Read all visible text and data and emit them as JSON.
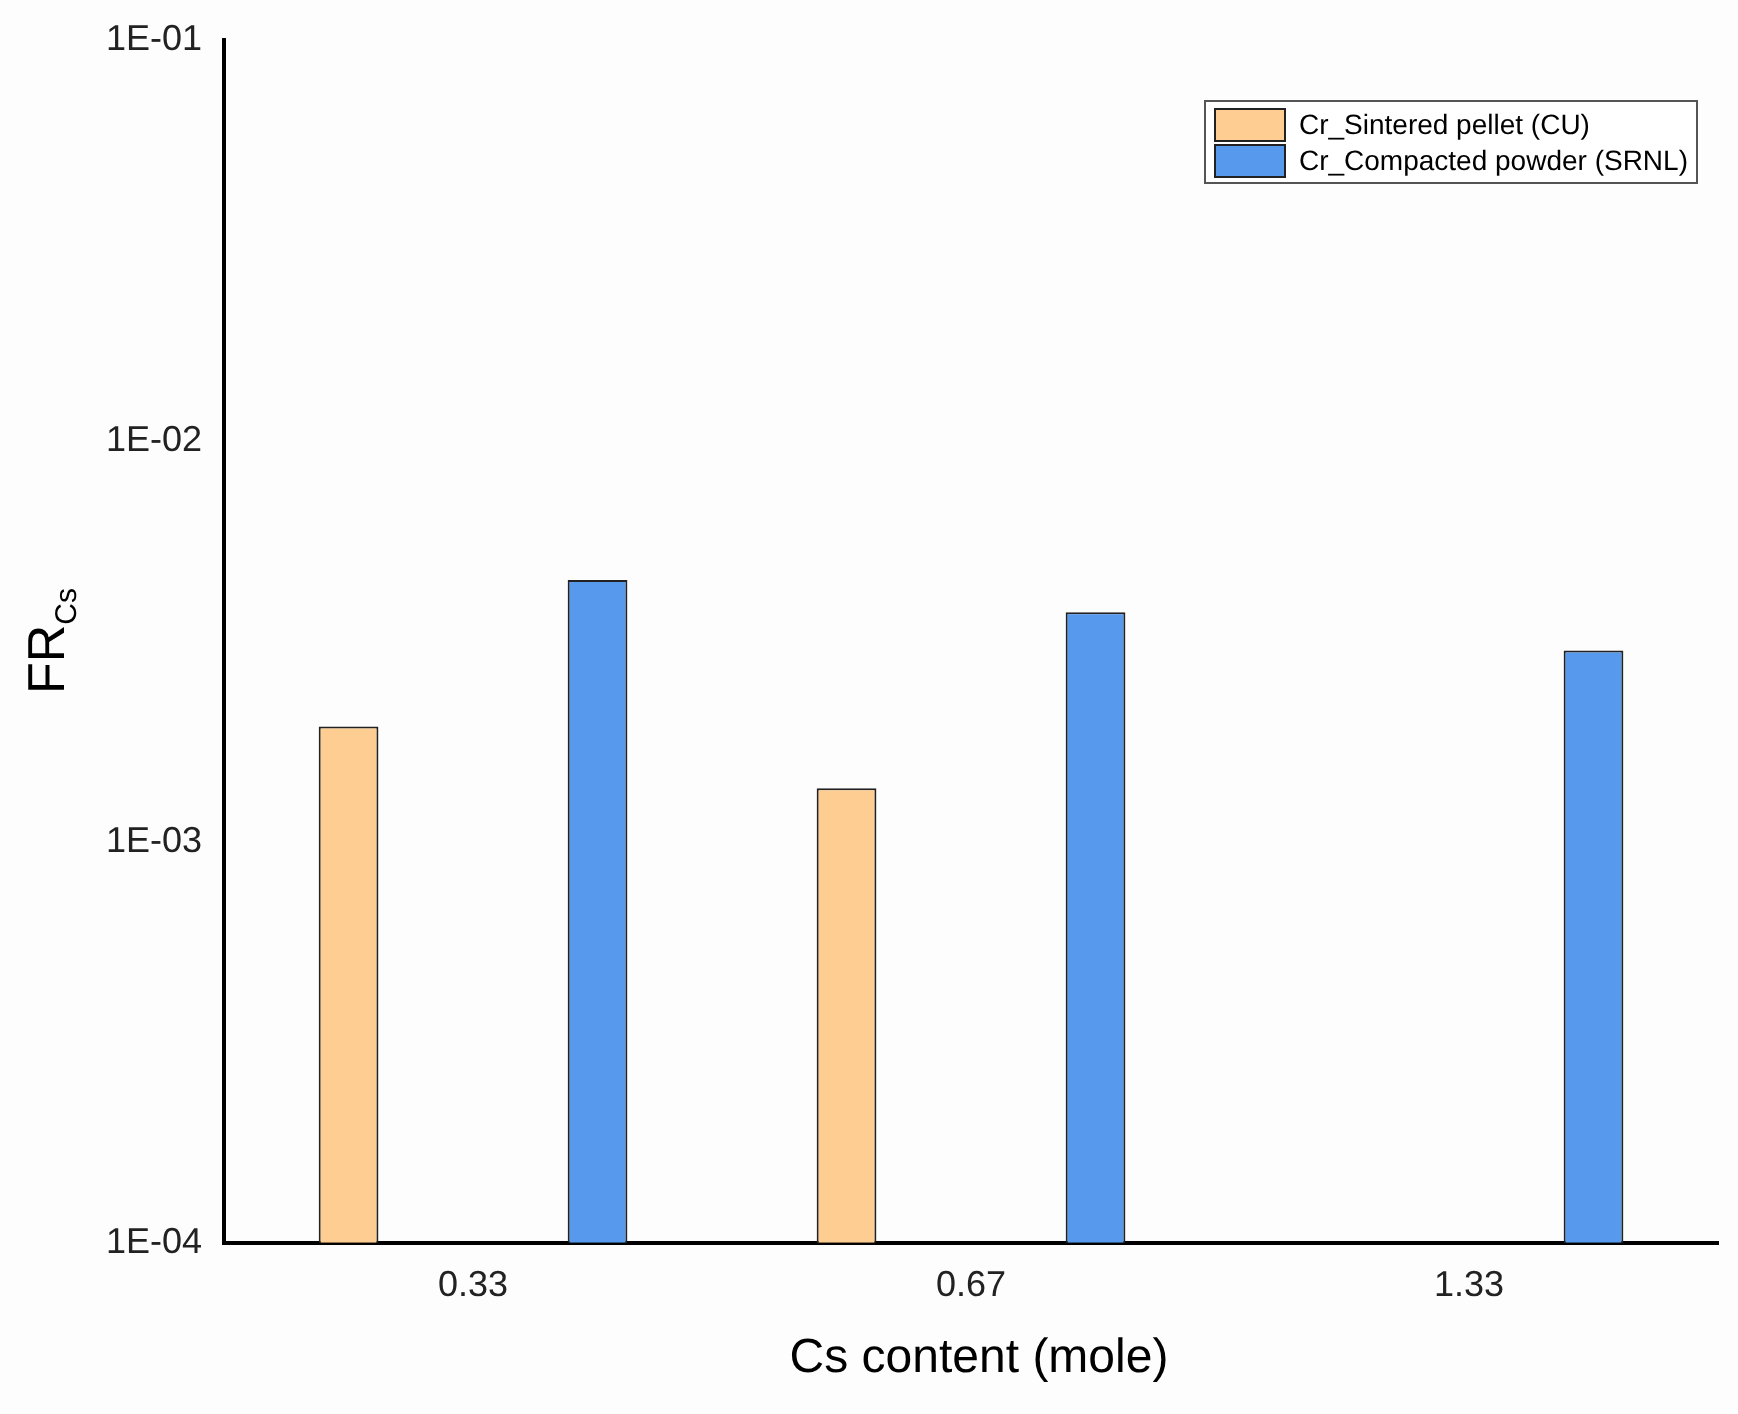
{
  "chart_data": {
    "type": "bar",
    "xlabel": "Cs content (mole)",
    "ylabel": "FR$_{Cs}$",
    "categories": [
      "0.33",
      "0.67",
      "1.33"
    ],
    "series": [
      {
        "name": "Cr_Sintered pellet (CU)",
        "color": "#fdcd92",
        "values": [
          0.00194,
          0.00136,
          null
        ]
      },
      {
        "name": "Cr_Compacted powder (SRNL)",
        "color": "#5799ec",
        "values": [
          0.0045,
          0.00374,
          0.003
        ]
      }
    ],
    "log": "y",
    "ylim": [
      0.0001,
      0.1
    ],
    "yticks": [
      {
        "value": 0.0001,
        "label": "1E-04"
      },
      {
        "value": 0.001,
        "label": "1E-03"
      },
      {
        "value": 0.01,
        "label": "1E-02"
      },
      {
        "value": 0.1,
        "label": "1E-01"
      }
    ],
    "grid": false,
    "legend": "top right"
  }
}
